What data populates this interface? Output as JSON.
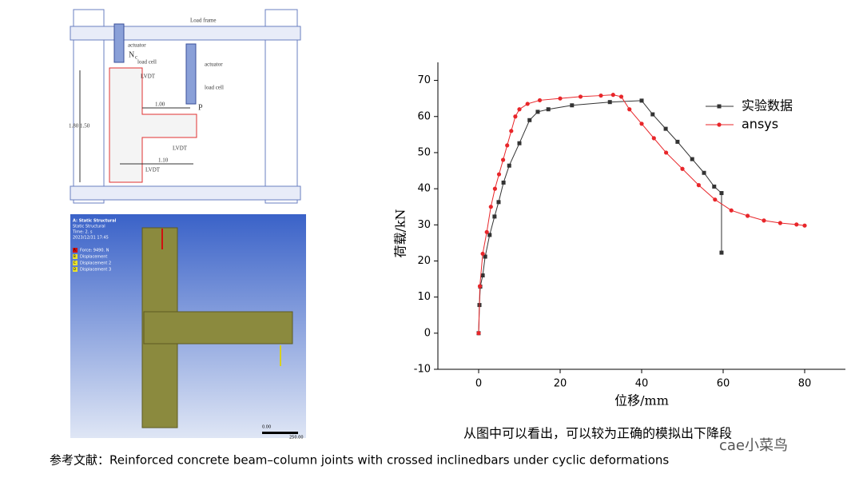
{
  "diagram": {
    "frame": "Load frame",
    "actuator_left": "actuator",
    "load_cell_left": "load cell",
    "force_left": "N",
    "force_left_sub": "c",
    "actuator_right": "actuator",
    "load_cell_right": "load cell",
    "force_right": "P",
    "lvdt_top": "LVDT",
    "lvdt_right": "LVDT",
    "lvdt_bottom": "LVDT",
    "dim_beam": "1.00",
    "dim_height": "1.80 1.50",
    "dim_lower": "1.10"
  },
  "simulation": {
    "title": "A: Static Structural",
    "subtitle": "Static Structural",
    "time": "Time: 2. s",
    "date": "2023/12/31 17:45",
    "legend": [
      {
        "key": "A",
        "label": "Force: 9490. N"
      },
      {
        "key": "B",
        "label": "Displacement"
      },
      {
        "key": "C",
        "label": "Displacement 2"
      },
      {
        "key": "D",
        "label": "Displacement 3"
      }
    ],
    "scale": [
      "0.00",
      "250.00"
    ]
  },
  "chart_data": {
    "type": "line",
    "x_label": "位移/mm",
    "y_label": "荷载/kN",
    "xlim": [
      -10,
      90
    ],
    "ylim": [
      -10,
      75
    ],
    "xticks": [
      0,
      20,
      40,
      60,
      80
    ],
    "yticks": [
      -10,
      0,
      10,
      20,
      30,
      40,
      50,
      60,
      70
    ],
    "legend": "upper right",
    "series": [
      {
        "name": "实验数据",
        "color": "#333333",
        "marker": "square",
        "x": [
          0,
          0.2,
          0.4,
          1,
          1.6,
          2.7,
          3.9,
          4.9,
          6.1,
          7.5,
          10,
          12.5,
          14.5,
          17.1,
          22.9,
          32.2,
          40,
          42.7,
          45.9,
          48.8,
          52.4,
          55.3,
          57.8,
          59.6,
          59.6
        ],
        "values": [
          0,
          7.8,
          12.9,
          16,
          21.2,
          27.2,
          32.3,
          36.3,
          41.7,
          46.4,
          52.6,
          59,
          61.3,
          62,
          63.1,
          64,
          64.4,
          60.6,
          56.6,
          53,
          48.2,
          44.4,
          40.6,
          38.8,
          22.3
        ]
      },
      {
        "name": "ansys",
        "color": "#e8262a",
        "marker": "circle",
        "x": [
          0,
          0.3,
          1,
          2,
          3,
          4,
          5,
          6,
          7,
          8,
          9,
          10,
          12,
          15,
          20,
          25,
          30,
          33,
          35,
          37,
          40,
          43,
          46,
          50,
          54,
          58,
          62,
          66,
          70,
          74,
          78,
          80
        ],
        "values": [
          0,
          13,
          22,
          28,
          35,
          40,
          44,
          48,
          52,
          56,
          60,
          62,
          63.5,
          64.5,
          65,
          65.5,
          65.8,
          66,
          65.5,
          62,
          58,
          54,
          50,
          45.5,
          41,
          37,
          34,
          32.5,
          31.2,
          30.5,
          30.1,
          29.8
        ]
      }
    ]
  },
  "caption": "从图中可以看出，可以较为正确的模拟出下降段",
  "reference": "参考文献：Reinforced concrete beam–column joints with crossed inclinedbars under cyclic deformations",
  "watermark": "cae小菜鸟"
}
